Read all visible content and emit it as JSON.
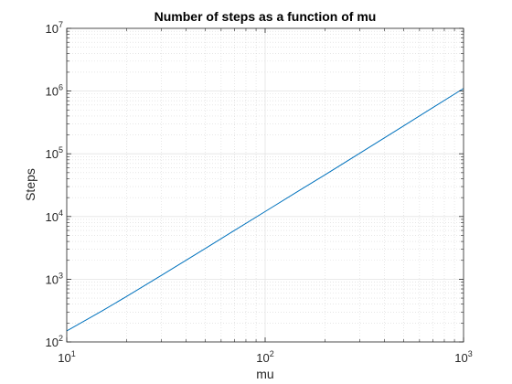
{
  "chart_data": {
    "type": "line",
    "title": "Number of steps as a function of mu",
    "xlabel": "mu",
    "ylabel": "Steps",
    "xscale": "log",
    "yscale": "log",
    "xlim": [
      10,
      1000
    ],
    "ylim": [
      100,
      10000000
    ],
    "grid": "on (major and minor)",
    "x_ticks": [
      {
        "value": 10,
        "base": "10",
        "exp": "1"
      },
      {
        "value": 100,
        "base": "10",
        "exp": "2"
      },
      {
        "value": 1000,
        "base": "10",
        "exp": "3"
      }
    ],
    "y_ticks": [
      {
        "value": 100,
        "base": "10",
        "exp": "2"
      },
      {
        "value": 1000,
        "base": "10",
        "exp": "3"
      },
      {
        "value": 10000,
        "base": "10",
        "exp": "4"
      },
      {
        "value": 100000,
        "base": "10",
        "exp": "5"
      },
      {
        "value": 1000000,
        "base": "10",
        "exp": "6"
      },
      {
        "value": 10000000,
        "base": "10",
        "exp": "7"
      }
    ],
    "series": [
      {
        "color": "#0072BD",
        "x": [
          10,
          15,
          20,
          30,
          50,
          70,
          100,
          150,
          200,
          300,
          500,
          700,
          1000
        ],
        "y": [
          150,
          310,
          530,
          1150,
          3100,
          6000,
          12000,
          26500,
          46000,
          102000,
          280000,
          545000,
          1100000
        ]
      }
    ]
  }
}
